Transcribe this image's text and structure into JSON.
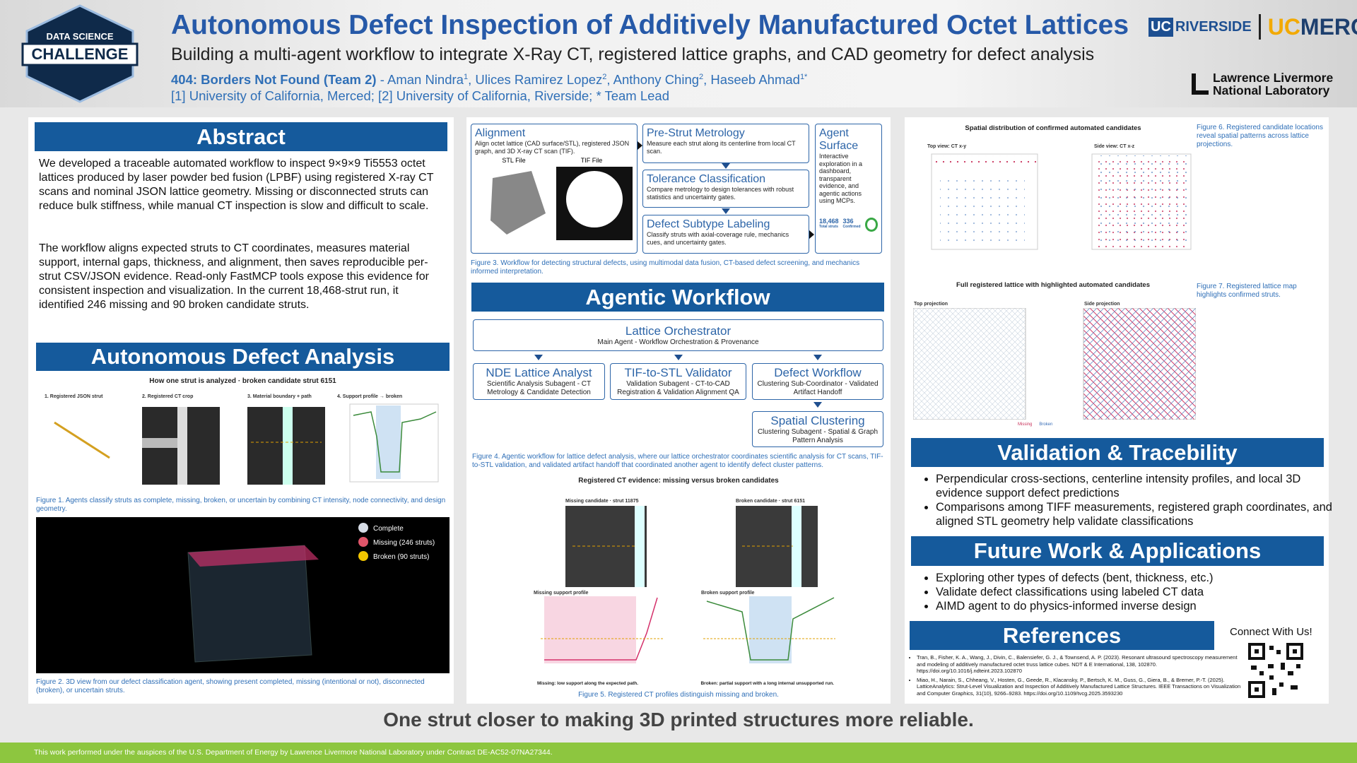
{
  "header": {
    "logo_top": "DATA SCIENCE",
    "logo_main": "CHALLENGE",
    "title": "Autonomous Defect Inspection of Additively Manufactured Octet Lattices",
    "subtitle": "Building a multi-agent workflow to integrate X-Ray CT, registered lattice graphs, and CAD geometry for defect analysis",
    "team": "404: Borders Not Found (Team 2)",
    "authors": [
      {
        "name": " - Aman Nindra",
        "sup": "1"
      },
      {
        "name": ", Ulices Ramirez Lopez",
        "sup": "2"
      },
      {
        "name": ", Anthony Ching",
        "sup": "2"
      },
      {
        "name": ", Haseeb Ahmad",
        "sup": "1*"
      }
    ],
    "affiliations": "[1] University of California, Merced; [2] University of California, Riverside; * Team Lead",
    "uc1": "UC",
    "riverside": "RIVERSIDE",
    "uc2": "UC",
    "merced": "MERCED",
    "llnl1": "Lawrence Livermore",
    "llnl2": "National Laboratory"
  },
  "abstract": {
    "heading": "Abstract",
    "paragraphs": [
      "We developed a traceable automated workflow to inspect 9×9×9 Ti5553 octet lattices produced by laser powder bed fusion (LPBF) using registered X-ray CT scans and nominal JSON lattice geometry. Missing or disconnected struts can reduce bulk stiffness, while manual CT inspection is slow and difficult to scale.",
      "The workflow aligns expected struts to CT coordinates, measures material support, internal gaps, thickness, and alignment, then saves reproducible per-strut CSV/JSON evidence. Read-only FastMCP tools expose this evidence for consistent inspection and visualization. In the current 18,468-strut run, it identified 246 missing and 90 broken candidate struts."
    ]
  },
  "defect_analysis": {
    "heading": "Autonomous Defect Analysis",
    "figure1": {
      "title": "How one strut is analyzed · broken candidate strut 6151",
      "panels": [
        "1. Registered JSON strut",
        "2. Registered CT crop",
        "3. Material boundary + path",
        "4. Support profile → broken"
      ],
      "caption": "Figure 1. Agents classify struts as complete, missing, broken, or uncertain by combining CT intensity, node connectivity, and design geometry."
    },
    "figure2": {
      "legend": [
        "Complete",
        "Missing (246 struts)",
        "Broken (90 struts)"
      ],
      "caption": "Figure 2. 3D view from our defect classification agent, showing present completed, missing (intentional or not), disconnected (broken), or uncertain struts."
    }
  },
  "workflow": {
    "alignment": {
      "title": "Alignment",
      "text": "Align octet lattice (CAD surface/STL), registered JSON graph, and 3D X-ray CT scan (TIF).",
      "stl": "STL File",
      "tif": "TIF File"
    },
    "steps": [
      {
        "title": "Pre-Strut Metrology",
        "text": "Measure each strut along its centerline from local CT scan."
      },
      {
        "title": "Tolerance Classification",
        "text": "Compare metrology to design tolerances with robust statistics and uncertainty gates."
      },
      {
        "title": "Defect Subtype Labeling",
        "text": "Classify struts with axial-coverage rule, mechanics cues, and uncertainty gates."
      }
    ],
    "agent_surface": {
      "title": "Agent Surface",
      "text": "Interactive exploration in a dashboard, transparent evidence, and agentic actions using MCPs.",
      "stat1": "18,468",
      "stat1_label": "Total struts",
      "stat2": "336",
      "stat2_label": "Confirmed"
    },
    "caption": "Figure 3. Workflow for detecting structural defects, using multimodal data fusion, CT-based defect screening, and mechanics informed interpretation."
  },
  "agentic": {
    "heading": "Agentic Workflow",
    "nodes": [
      {
        "title": "Lattice Orchestrator",
        "text": "Main Agent - Workflow Orchestration & Provenance"
      },
      {
        "title": "NDE Lattice Analyst",
        "text": "Scientific Analysis Subagent - CT Metrology & Candidate Detection"
      },
      {
        "title": "TIF-to-STL Validator",
        "text": "Validation Subagent - CT-to-CAD Registration & Validation Alignment QA"
      },
      {
        "title": "Defect Workflow",
        "text": "Clustering Sub-Coordinator - Validated Artifact Handoff"
      },
      {
        "title": "Spatial Clustering",
        "text": "Clustering Subagent - Spatial & Graph Pattern Analysis"
      }
    ],
    "caption": "Figure 4. Agentic workflow for lattice defect analysis, where our lattice orchestrator coordinates scientific analysis for CT scans, TIF-to-STL validation, and validated artifact handoff that coordinated another agent to identify defect cluster patterns.",
    "figure5": {
      "title": "Registered CT evidence: missing versus broken candidates",
      "panels": [
        "Missing candidate · strut 11875",
        "Broken candidate · strut 6151",
        "Missing support profile",
        "Broken support profile"
      ],
      "notes": [
        "Missing: low support along the expected path.",
        "Broken: partial support with a long internal unsupported run."
      ],
      "caption": "Figure 5. Registered CT profiles distinguish missing and broken."
    }
  },
  "spatial": {
    "figure6": {
      "title": "Spatial distribution of confirmed automated candidates",
      "panels": [
        "Top view: CT x-y",
        "Side view: CT x-z"
      ],
      "caption": "Figure 6. Registered candidate locations reveal spatial patterns across lattice projections."
    },
    "figure7": {
      "title": "Full registered lattice with highlighted automated candidates",
      "panels": [
        "Top projection",
        "Side projection"
      ],
      "legend": [
        "Missing",
        "Broken"
      ],
      "caption": "Figure 7. Registered lattice map highlights confirmed struts."
    }
  },
  "validation": {
    "heading": "Validation & Tracebility",
    "bullets": [
      "Perpendicular cross-sections, centerline intensity profiles, and local 3D evidence support defect predictions",
      "Comparisons among TIFF measurements, registered graph coordinates, and aligned STL geometry help validate classifications"
    ]
  },
  "future": {
    "heading": "Future Work & Applications",
    "bullets": [
      "Exploring other types of defects (bent, thickness, etc.)",
      "Validate defect classifications using labeled CT data",
      "AIMD agent to do physics-informed inverse design"
    ]
  },
  "references": {
    "heading": "References",
    "items": [
      "Tran, B., Fisher, K. A., Wang, J., Divin, C., Balensiefer, G. J., & Townsend, A. P. (2023). Resonant ultrasound spectroscopy measurement and modeling of additively manufactured octet truss lattice cubes. NDT & E International, 138, 102870. https://doi.org/10.1016/j.ndteint.2023.102870",
      "Miao, H., Narain, S., Chheang, V., Hosten, G., Geede, R., Klacansky, P., Bertsch, K. M., Guss, G., Giera, B., & Bremer, P.-T. (2025). LatticeAnalytics: Strut-Level Visualization and Inspection of Additively Manufactured Lattice Structures. IEEE Transactions on Visualization and Computer Graphics, 31(10), 9266–9283. https://doi.org/10.1109/tvcg.2025.3593230"
    ],
    "connect": "Connect With Us!"
  },
  "tagline": "One strut closer to making 3D printed structures more reliable.",
  "footer": "This work performed under the auspices of the U.S. Department of Energy by Lawrence Livermore National Laboratory under Contract DE-AC52-07NA27344."
}
